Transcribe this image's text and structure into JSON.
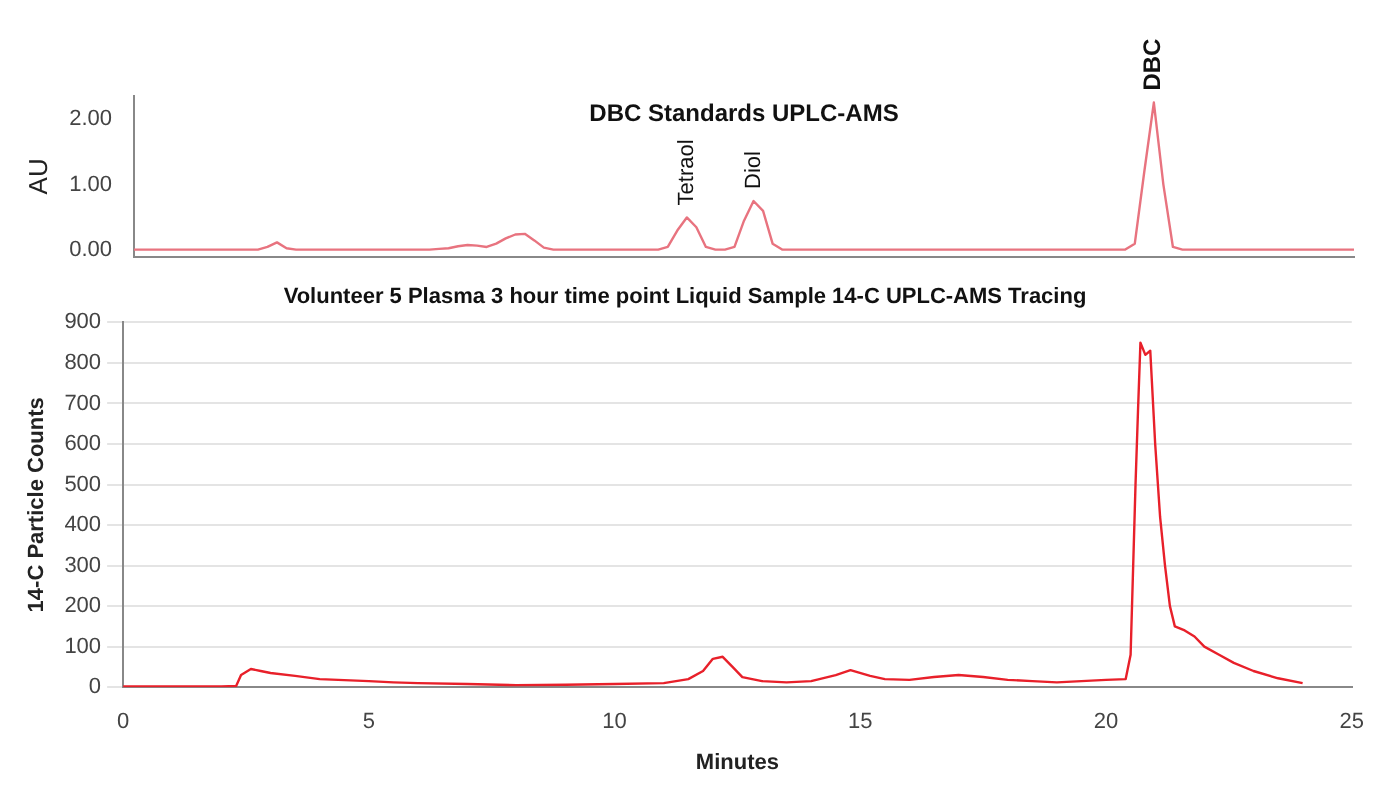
{
  "chart_data": [
    {
      "type": "line",
      "title": "DBC Standards UPLC-AMS",
      "ylabel": "AU",
      "color": "#e8737f",
      "tick_labels": "y",
      "ylim": [
        -0.1,
        2.35
      ],
      "yticks": [
        {
          "value": 0,
          "label": "0.00"
        },
        {
          "value": 1,
          "label": "1.00"
        },
        {
          "value": 2,
          "label": "2.00"
        }
      ],
      "annotations": [
        "Tetraol",
        "Diol",
        "DBC"
      ],
      "categories": [
        null,
        null,
        null,
        null,
        null,
        null,
        null,
        null,
        null,
        null,
        null,
        null,
        null,
        null,
        null,
        null,
        null,
        null,
        null,
        null,
        null,
        null,
        null,
        null,
        null,
        null,
        null,
        null,
        null,
        null,
        null,
        null,
        null,
        null,
        null,
        null,
        null,
        null,
        null,
        null,
        null,
        null,
        null,
        null,
        null,
        null,
        null,
        null,
        null,
        null,
        null,
        null,
        null,
        null,
        null,
        null,
        null,
        null,
        null,
        null,
        null,
        null,
        null,
        null,
        null,
        null,
        null,
        null,
        null,
        null,
        null,
        null,
        null,
        null,
        null,
        null,
        null,
        null,
        null,
        null,
        null,
        null,
        null,
        null,
        null,
        null,
        null,
        null,
        null,
        null,
        null,
        null,
        null,
        null,
        null,
        null,
        null,
        null,
        null,
        null,
        null,
        null,
        null,
        null,
        null,
        null,
        null,
        null,
        null,
        null,
        null,
        null,
        null,
        null,
        null,
        null,
        null,
        null,
        null,
        null,
        null,
        null,
        null,
        null,
        null,
        null,
        null,
        null,
        null
      ],
      "values": [
        0.01,
        0.01,
        0.01,
        0.01,
        0.01,
        0.01,
        0.01,
        0.01,
        0.01,
        0.01,
        0.01,
        0.01,
        0.01,
        0.01,
        0.05,
        0.12,
        0.03,
        0.01,
        0.01,
        0.01,
        0.01,
        0.01,
        0.01,
        0.01,
        0.01,
        0.01,
        0.01,
        0.01,
        0.01,
        0.01,
        0.01,
        0.01,
        0.02,
        0.03,
        0.06,
        0.08,
        0.07,
        0.05,
        0.1,
        0.18,
        0.24,
        0.25,
        0.15,
        0.04,
        0.01,
        0.01,
        0.01,
        0.01,
        0.01,
        0.01,
        0.01,
        0.01,
        0.01,
        0.01,
        0.01,
        0.01,
        0.05,
        0.3,
        0.5,
        0.35,
        0.05,
        0.01,
        0.01,
        0.05,
        0.45,
        0.75,
        0.6,
        0.1,
        0.01,
        0.01,
        0.01,
        0.01,
        0.01,
        0.01,
        0.01,
        0.01,
        0.01,
        0.01,
        0.01,
        0.01,
        0.01,
        0.01,
        0.01,
        0.01,
        0.01,
        0.01,
        0.01,
        0.01,
        0.01,
        0.01,
        0.01,
        0.01,
        0.01,
        0.01,
        0.01,
        0.01,
        0.01,
        0.01,
        0.01,
        0.01,
        0.01,
        0.01,
        0.01,
        0.01,
        0.01,
        0.1,
        1.2,
        2.25,
        1.0,
        0.05,
        0.01,
        0.01,
        0.01,
        0.01,
        0.01,
        0.01,
        0.01,
        0.01,
        0.01,
        0.01,
        0.01,
        0.01,
        0.01,
        0.01,
        0.01,
        0.01,
        0.01,
        0.01,
        0.01
      ]
    },
    {
      "type": "line",
      "title": "Volunteer 5 Plasma 3 hour time point Liquid Sample 14-C UPLC-AMS Tracing",
      "xlabel": "Minutes",
      "ylabel": "14-C Particle Counts",
      "color": "#e8202a",
      "grid": "y",
      "xlim": [
        0,
        25
      ],
      "xticks": [
        0,
        5,
        10,
        15,
        20,
        25
      ],
      "ylim": [
        0,
        900
      ],
      "yticks": [
        0,
        100,
        200,
        300,
        400,
        500,
        600,
        700,
        800,
        900
      ],
      "x": [
        0,
        1,
        2,
        2.3,
        2.4,
        2.6,
        2.8,
        3,
        3.5,
        4,
        5,
        5.5,
        6,
        7,
        8,
        9,
        10,
        11,
        11.5,
        11.8,
        12,
        12.2,
        12.4,
        12.6,
        13,
        13.5,
        14,
        14.5,
        14.8,
        15.2,
        15.5,
        16,
        16.5,
        17,
        17.5,
        18,
        18.5,
        19,
        19.5,
        20,
        20.4,
        20.5,
        20.6,
        20.65,
        20.7,
        20.8,
        20.9,
        21,
        21.1,
        21.2,
        21.3,
        21.4,
        21.6,
        21.8,
        22,
        22.3,
        22.6,
        23,
        23.5,
        24
      ],
      "values": [
        2,
        2,
        2,
        3,
        30,
        45,
        40,
        35,
        28,
        20,
        15,
        12,
        10,
        8,
        5,
        6,
        8,
        10,
        20,
        40,
        70,
        75,
        50,
        25,
        15,
        12,
        15,
        30,
        42,
        28,
        20,
        18,
        25,
        30,
        25,
        18,
        15,
        12,
        15,
        18,
        20,
        80,
        500,
        680,
        850,
        820,
        830,
        600,
        420,
        300,
        200,
        150,
        140,
        125,
        100,
        80,
        60,
        40,
        22,
        10
      ]
    }
  ]
}
